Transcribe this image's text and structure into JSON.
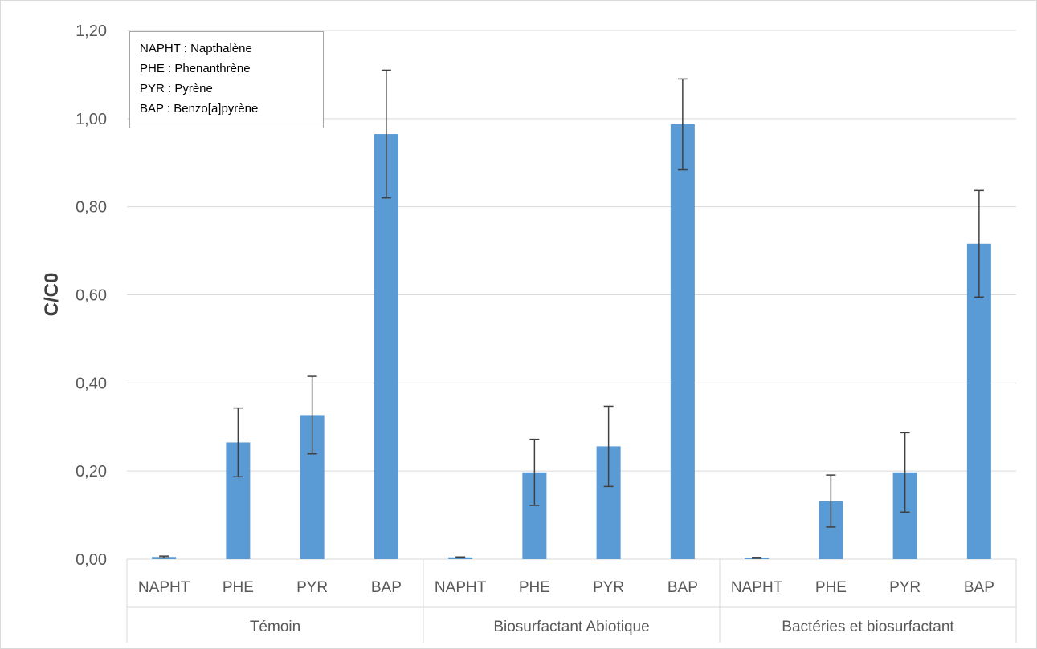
{
  "chart_data": {
    "type": "bar",
    "title": "",
    "ylabel": "C/C0",
    "ylim": [
      0,
      1.2
    ],
    "yticks": [
      "0,00",
      "0,20",
      "0,40",
      "0,60",
      "0,80",
      "1,00",
      "1,20"
    ],
    "grid": true,
    "bar_color": "#5b9bd5",
    "groups": [
      {
        "label": "Témoin",
        "categories": [
          "NAPHT",
          "PHE",
          "PYR",
          "BAP"
        ],
        "values": [
          0.005,
          0.265,
          0.327,
          0.965
        ],
        "error": [
          0.002,
          0.078,
          0.088,
          0.145
        ]
      },
      {
        "label": "Biosurfactant Abiotique",
        "categories": [
          "NAPHT",
          "PHE",
          "PYR",
          "BAP"
        ],
        "values": [
          0.004,
          0.197,
          0.256,
          0.987
        ],
        "error": [
          0.001,
          0.075,
          0.091,
          0.103
        ]
      },
      {
        "label": "Bactéries et biosurfactant",
        "categories": [
          "NAPHT",
          "PHE",
          "PYR",
          "BAP"
        ],
        "values": [
          0.003,
          0.132,
          0.197,
          0.716
        ],
        "error": [
          0.001,
          0.059,
          0.09,
          0.121
        ]
      }
    ],
    "annotation_box": [
      "NAPHT : Napthalène",
      "PHE : Phenanthrène",
      "PYR : Pyrène",
      "BAP : Benzo[a]pyrène"
    ]
  }
}
